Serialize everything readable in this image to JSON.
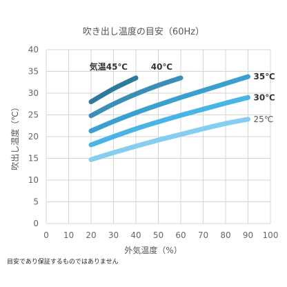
{
  "chart_data": {
    "type": "line",
    "title": "吹き出し温度の目安（60Hz）",
    "xlabel": "外気温度（%）",
    "ylabel": "吹出し温度（℃）",
    "xlim": [
      0,
      100
    ],
    "ylim": [
      0,
      40
    ],
    "x_ticks": [
      "0",
      "10",
      "20",
      "30",
      "40",
      "50",
      "60",
      "70",
      "80",
      "90",
      "100"
    ],
    "y_ticks": [
      "0",
      "5",
      "10",
      "15",
      "20",
      "25",
      "30",
      "35",
      "40"
    ],
    "grid": true,
    "series": [
      {
        "name": "気温45℃",
        "color": "#2e7a9c",
        "x": [
          20,
          30,
          40
        ],
        "y": [
          28,
          31,
          33.5
        ]
      },
      {
        "name": "40℃",
        "color": "#3b8fb7",
        "x": [
          20,
          30,
          40,
          50,
          60
        ],
        "y": [
          24.8,
          27.5,
          29.8,
          31.8,
          33.5
        ]
      },
      {
        "name": "35℃",
        "color": "#3aa0d0",
        "x": [
          20,
          30,
          40,
          50,
          60,
          70,
          80,
          90
        ],
        "y": [
          21.3,
          23.5,
          25.5,
          27.3,
          29,
          30.6,
          32.2,
          33.8
        ]
      },
      {
        "name": "30℃",
        "color": "#49b5e6",
        "x": [
          20,
          30,
          40,
          50,
          60,
          70,
          80,
          90
        ],
        "y": [
          18.1,
          20,
          21.8,
          23.4,
          24.9,
          26.3,
          27.7,
          29
        ]
      },
      {
        "name": "25℃",
        "color": "#86cdef",
        "x": [
          20,
          30,
          40,
          50,
          60,
          70,
          80,
          90
        ],
        "y": [
          14.7,
          16.3,
          17.8,
          19.2,
          20.5,
          21.8,
          23,
          24
        ]
      }
    ]
  },
  "note": "目安であり保証するものではありません"
}
